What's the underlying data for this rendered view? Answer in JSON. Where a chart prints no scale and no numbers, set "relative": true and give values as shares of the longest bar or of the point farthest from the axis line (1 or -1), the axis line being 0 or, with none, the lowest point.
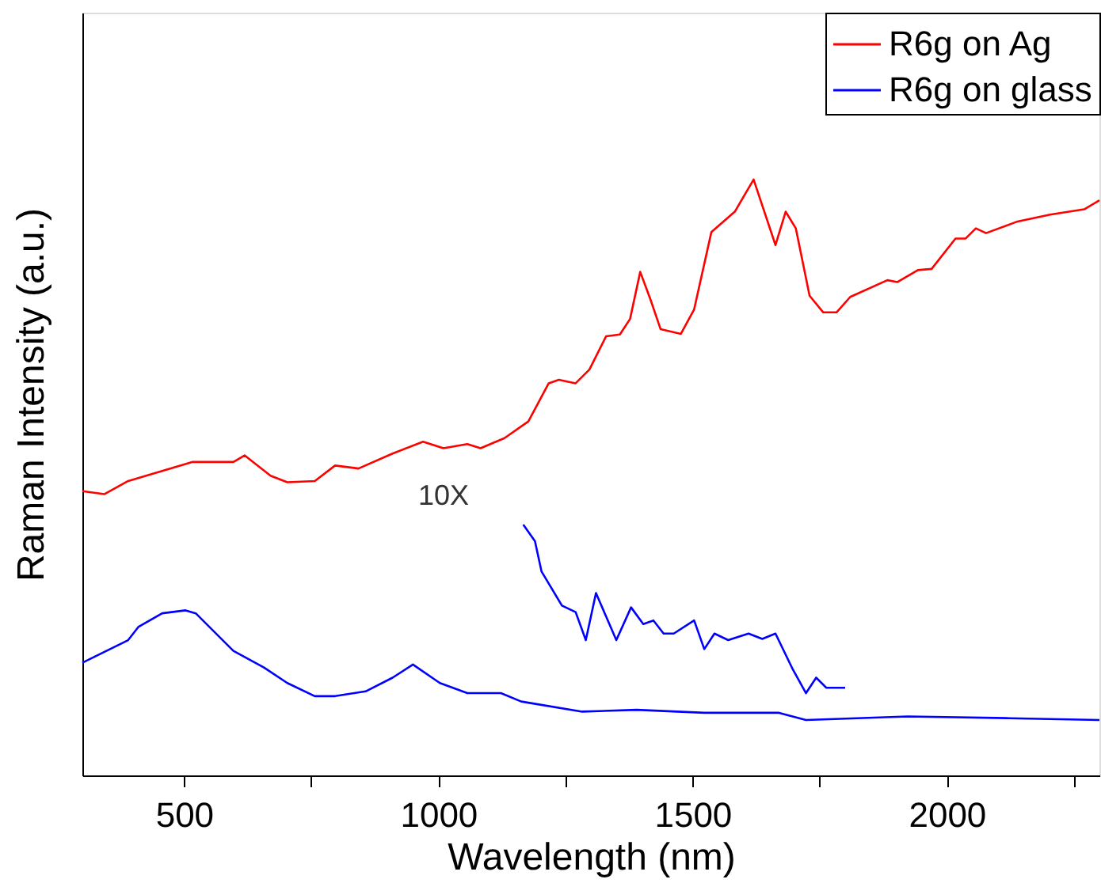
{
  "chart_data": {
    "type": "line",
    "xlabel": "Wavelength (nm)",
    "ylabel": "Raman Intensity (a.u.)",
    "relative": true,
    "xlim": [
      300,
      2300
    ],
    "xticks": [
      500,
      1000,
      1500,
      2000,
      {
        "value": 750,
        "label": null
      },
      {
        "value": 1250,
        "label": null
      },
      {
        "value": 1750,
        "label": null
      },
      {
        "value": 2250,
        "label": null
      }
    ],
    "legend": "top right",
    "grid": false,
    "marker": "none",
    "line_style": "solid",
    "annotations": [
      "10X"
    ],
    "series": [
      {
        "name": "R6g on Ag",
        "color": "#ff0000",
        "x": [
          300,
          343,
          390,
          517,
          597,
          619,
          670,
          703,
          757,
          797,
          843,
          910,
          970,
          1010,
          1057,
          1083,
          1130,
          1177,
          1217,
          1237,
          1270,
          1297,
          1330,
          1357,
          1377,
          1397,
          1417,
          1437,
          1477,
          1503,
          1537,
          1583,
          1620,
          1663,
          1683,
          1703,
          1730,
          1757,
          1783,
          1810,
          1883,
          1903,
          1943,
          1970,
          2017,
          2037,
          2057,
          2077,
          2137,
          2203,
          2270,
          2300
        ],
        "values": [
          0.477,
          0.472,
          0.494,
          0.526,
          0.526,
          0.537,
          0.503,
          0.492,
          0.494,
          0.52,
          0.515,
          0.54,
          0.56,
          0.549,
          0.556,
          0.549,
          0.566,
          0.594,
          0.658,
          0.664,
          0.658,
          0.681,
          0.737,
          0.74,
          0.766,
          0.845,
          0.799,
          0.749,
          0.741,
          0.782,
          0.912,
          0.946,
          1.0,
          0.89,
          0.946,
          0.918,
          0.805,
          0.777,
          0.777,
          0.803,
          0.831,
          0.828,
          0.848,
          0.85,
          0.901,
          0.901,
          0.918,
          0.91,
          0.929,
          0.941,
          0.95,
          0.965
        ]
      },
      {
        "name": "R6g on glass",
        "color": "#0000ff",
        "x": [
          300,
          390,
          410,
          457,
          503,
          523,
          597,
          657,
          703,
          757,
          797,
          857,
          910,
          950,
          1003,
          1057,
          1123,
          1163,
          1283,
          1390,
          1523,
          1670,
          1723,
          1923,
          2123,
          2300
        ],
        "values": [
          0.189,
          0.227,
          0.249,
          0.272,
          0.277,
          0.272,
          0.209,
          0.181,
          0.155,
          0.133,
          0.133,
          0.141,
          0.164,
          0.186,
          0.155,
          0.138,
          0.138,
          0.124,
          0.107,
          0.11,
          0.105,
          0.105,
          0.093,
          0.099,
          0.096,
          0.093
        ]
      },
      {
        "color": "#0000ff",
        "x": [
          1167,
          1190,
          1203,
          1243,
          1270,
          1290,
          1310,
          1350,
          1379,
          1403,
          1423,
          1443,
          1463,
          1503,
          1523,
          1543,
          1570,
          1610,
          1637,
          1663,
          1697,
          1723,
          1743,
          1763,
          1800
        ],
        "values": [
          0.421,
          0.393,
          0.342,
          0.285,
          0.274,
          0.227,
          0.306,
          0.227,
          0.282,
          0.254,
          0.26,
          0.238,
          0.238,
          0.26,
          0.212,
          0.238,
          0.227,
          0.238,
          0.229,
          0.238,
          0.178,
          0.138,
          0.164,
          0.147,
          0.147
        ]
      }
    ]
  }
}
